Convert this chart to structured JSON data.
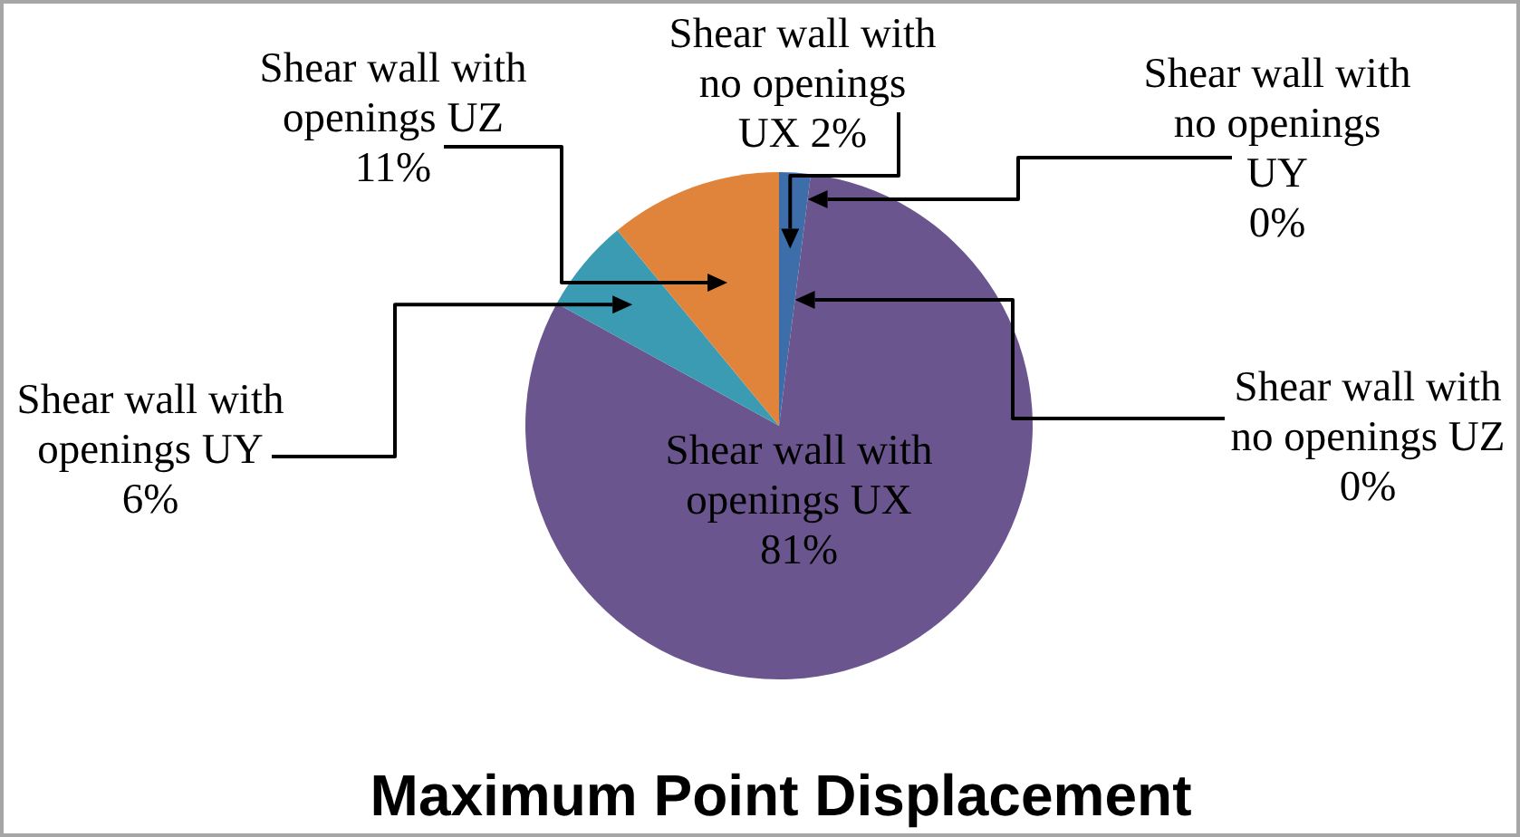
{
  "chart_data": {
    "type": "pie",
    "title": "Maximum Point Displacement",
    "categories": [
      "Shear wall with no openings UX",
      "Shear wall with no openings UY",
      "Shear wall with no openings UZ",
      "Shear wall with openings UX",
      "Shear wall with openings UY",
      "Shear wall with openings UZ"
    ],
    "values": [
      2,
      0,
      0,
      81,
      6,
      11
    ],
    "value_labels": [
      "2%",
      "0%",
      "0%",
      "81%",
      "6%",
      "11%"
    ],
    "colors": [
      "#3d6ea9",
      "#b84a48",
      "#94b050",
      "#6b558e",
      "#3b9bb2",
      "#e0843c"
    ]
  }
}
